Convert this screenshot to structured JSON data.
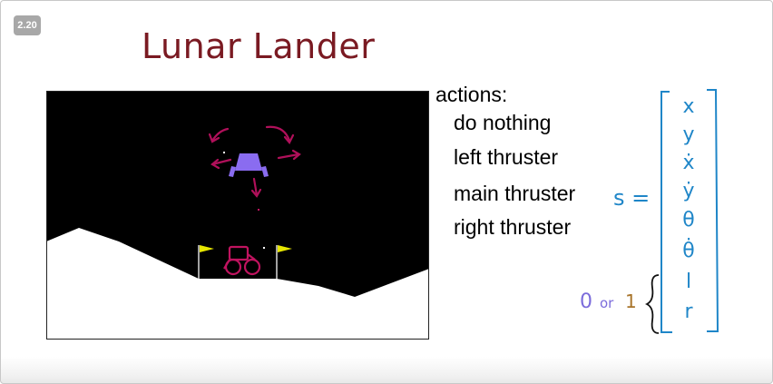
{
  "slide_badge": "2.20",
  "title": "Lunar Lander",
  "actions": {
    "heading": "actions:",
    "items": [
      "do nothing",
      "left thruster",
      "main thruster",
      "right thruster"
    ]
  },
  "state_vector": {
    "lhs": "s =",
    "components": [
      "x",
      "y",
      "ẋ",
      "ẏ",
      "θ",
      "θ̇",
      "l",
      "r"
    ],
    "binary_note_zero": "0",
    "binary_note_or": "or",
    "binary_note_one": "1"
  },
  "colors": {
    "title": "#7a1a22",
    "annotation_blue": "#1f86c8",
    "arrow_magenta": "#b0105a",
    "lander_purple": "#8a6cf0",
    "flag_yellow": "#e6e600",
    "note_purple": "#7b6cdb",
    "note_brown": "#a8742a"
  }
}
